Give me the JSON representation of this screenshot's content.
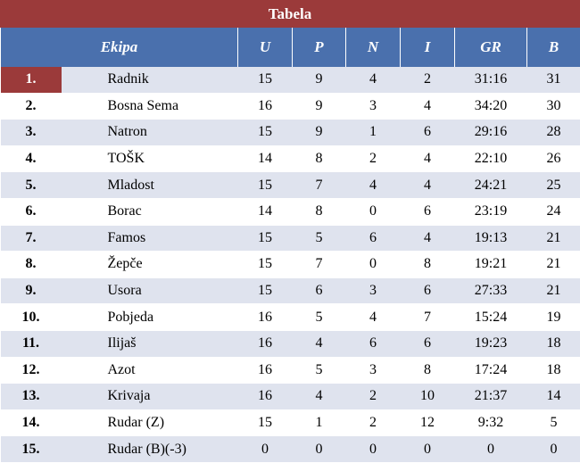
{
  "title": "Tabela",
  "headers": [
    "Ekipa",
    "U",
    "P",
    "N",
    "I",
    "GR",
    "B"
  ],
  "rows": [
    {
      "rank": "1.",
      "team": "Radnik",
      "u": "15",
      "p": "9",
      "n": "4",
      "i": "2",
      "gr": "31:16",
      "b": "31"
    },
    {
      "rank": "2.",
      "team": "Bosna Sema",
      "u": "16",
      "p": "9",
      "n": "3",
      "i": "4",
      "gr": "34:20",
      "b": "30"
    },
    {
      "rank": "3.",
      "team": "Natron",
      "u": "15",
      "p": "9",
      "n": "1",
      "i": "6",
      "gr": "29:16",
      "b": "28"
    },
    {
      "rank": "4.",
      "team": "TOŠK",
      "u": "14",
      "p": "8",
      "n": "2",
      "i": "4",
      "gr": "22:10",
      "b": "26"
    },
    {
      "rank": "5.",
      "team": "Mladost",
      "u": "15",
      "p": "7",
      "n": "4",
      "i": "4",
      "gr": "24:21",
      "b": "25"
    },
    {
      "rank": "6.",
      "team": "Borac",
      "u": "14",
      "p": "8",
      "n": "0",
      "i": "6",
      "gr": "23:19",
      "b": "24"
    },
    {
      "rank": "7.",
      "team": "Famos",
      "u": "15",
      "p": "5",
      "n": "6",
      "i": "4",
      "gr": "19:13",
      "b": "21"
    },
    {
      "rank": "8.",
      "team": "Žepče",
      "u": "15",
      "p": "7",
      "n": "0",
      "i": "8",
      "gr": "19:21",
      "b": "21"
    },
    {
      "rank": "9.",
      "team": "Usora",
      "u": "15",
      "p": "6",
      "n": "3",
      "i": "6",
      "gr": "27:33",
      "b": "21"
    },
    {
      "rank": "10.",
      "team": "Pobjeda",
      "u": "16",
      "p": "5",
      "n": "4",
      "i": "7",
      "gr": "15:24",
      "b": "19"
    },
    {
      "rank": "11.",
      "team": "Ilijaš",
      "u": "16",
      "p": "4",
      "n": "6",
      "i": "6",
      "gr": "19:23",
      "b": "18"
    },
    {
      "rank": "12.",
      "team": "Azot",
      "u": "16",
      "p": "5",
      "n": "3",
      "i": "8",
      "gr": "17:24",
      "b": "18"
    },
    {
      "rank": "13.",
      "team": "Krivaja",
      "u": "16",
      "p": "4",
      "n": "2",
      "i": "10",
      "gr": "21:37",
      "b": "14"
    },
    {
      "rank": "14.",
      "team": "Rudar (Z)",
      "u": "15",
      "p": "1",
      "n": "2",
      "i": "12",
      "gr": "9:32",
      "b": "5"
    },
    {
      "rank": "15.",
      "team": "Rudar (B)(-3)",
      "u": "0",
      "p": "0",
      "n": "0",
      "i": "0",
      "gr": "0",
      "b": "0"
    }
  ],
  "colors": {
    "title_bg": "#9b3a3a",
    "header_bg": "#4a70ad",
    "stripe": "#dfe3ee",
    "leader": "#9b3a3a"
  }
}
